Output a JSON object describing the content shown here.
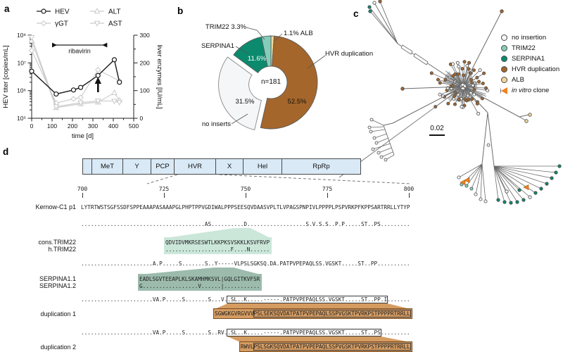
{
  "figure": {
    "panel_labels": {
      "a": "a",
      "b": "b",
      "c": "c",
      "d": "d"
    }
  },
  "colors": {
    "hev_black": "#1a1a1a",
    "enzyme_grey": "#c9c9c9",
    "no_insertion": "#f4f6f7",
    "trim22": "#85cdbb",
    "serpina1": "#0b8a6d",
    "hvr_duplication": "#a5662b",
    "alb": "#f2d79b",
    "in_vitro": "#f08121",
    "genome": "#d9e9f6",
    "trim_box": "#cbe7da",
    "serpina_box": "#9cbbad",
    "dup_box": "#d59c62"
  },
  "chart_data": [
    {
      "type": "line",
      "title": "",
      "xlabel": "time [d]",
      "ylabel_left": "HEV titer [copies/mL]",
      "ylabel_right": "liver enzymes [IU/mL]",
      "x_ticks": [
        0,
        100,
        200,
        300,
        400,
        500
      ],
      "xlim": [
        0,
        500
      ],
      "y_left_scale": "log",
      "y_left_ticks": [
        "10⁵",
        "10⁶",
        "10⁷",
        "10⁸"
      ],
      "y_left_lim": [
        100000,
        100000000
      ],
      "y_right_ticks": [
        0,
        100,
        200,
        300
      ],
      "y_right_lim": [
        0,
        300
      ],
      "annotation": {
        "label": "ribavirin",
        "x_start": 100,
        "x_end": 370,
        "arrow_x": 325
      },
      "series": [
        {
          "name": "HEV",
          "axis": "left",
          "marker": "circle",
          "color": "#1a1a1a",
          "points": [
            [
              0,
              5000000
            ],
            [
              120,
              750000
            ],
            [
              205,
              1050000
            ],
            [
              240,
              1300000
            ],
            [
              325,
              3500000
            ],
            [
              405,
              13000000
            ],
            [
              430,
              2000000
            ]
          ]
        },
        {
          "name": "γGT",
          "axis": "right",
          "marker": "diamond",
          "color": "#c9c9c9",
          "points": [
            [
              0,
              245
            ],
            [
              120,
              55
            ],
            [
              205,
              70
            ],
            [
              240,
              75
            ],
            [
              325,
              175
            ],
            [
              430,
              135
            ]
          ]
        },
        {
          "name": "ALT",
          "axis": "right",
          "marker": "triangle-up",
          "color": "#c9c9c9",
          "points": [
            [
              0,
              280
            ],
            [
              120,
              38
            ],
            [
              240,
              52
            ],
            [
              325,
              58
            ],
            [
              405,
              92
            ],
            [
              430,
              65
            ]
          ]
        },
        {
          "name": "AST",
          "axis": "right",
          "marker": "triangle-down",
          "color": "#c9c9c9",
          "points": [
            [
              0,
              292
            ],
            [
              120,
              42
            ],
            [
              240,
              56
            ],
            [
              325,
              63
            ],
            [
              405,
              62
            ],
            [
              430,
              58
            ]
          ]
        }
      ]
    },
    {
      "type": "pie",
      "title": "",
      "center_label": "n=181",
      "slices": [
        {
          "label": "ALB",
          "pct": 1.1,
          "color": "#f2d79b",
          "exploded": false
        },
        {
          "label": "HVR duplication",
          "pct": 52.5,
          "color": "#a5662b",
          "exploded": false
        },
        {
          "label": "no inserts",
          "pct": 31.5,
          "color": "#f4f6f7",
          "exploded": true
        },
        {
          "label": "SERPINA1",
          "pct": 11.6,
          "color": "#0b8a6d",
          "exploded": false
        },
        {
          "label": "TRIM22",
          "pct": 3.3,
          "color": "#85cdbb",
          "exploded": false
        }
      ]
    }
  ],
  "panel_b": {
    "labels": {
      "trim22": "TRIM22 3.3%",
      "alb": "1.1% ALB",
      "serpina1": "SERPINA1",
      "hvr": "HVR duplication",
      "no_inserts": "no inserts",
      "pct_serpina1": "11.6%",
      "pct_hvr": "52.5%",
      "pct_no_inserts": "31.5%",
      "center": "n=181"
    }
  },
  "panel_c": {
    "legend": [
      {
        "label": "no insertion",
        "marker": "circle",
        "color": "#f4f6f7"
      },
      {
        "label": "TRIM22",
        "marker": "circle",
        "color": "#85cdbb"
      },
      {
        "label": "SERPINA1",
        "marker": "circle",
        "color": "#0b8a6d"
      },
      {
        "label": "HVR duplication",
        "marker": "circle",
        "color": "#a5662b"
      },
      {
        "label": "ALB",
        "marker": "circle",
        "color": "#f2d79b"
      },
      {
        "label_italic": "in vitro",
        "label_rest": " clone",
        "marker": "triangle",
        "color": "#f08121"
      }
    ],
    "scale_label": "0.02"
  },
  "panel_d": {
    "genome_segments": [
      "",
      "MeT",
      "Y",
      "PCP",
      "HVR",
      "X",
      "Hel",
      "RpRp"
    ],
    "ruler": [
      "700",
      "725",
      "750",
      "775",
      "800"
    ],
    "labels": {
      "reference": "Kernow-C1 p1",
      "cons_trim22": "cons.TRIM22",
      "h_trim22": "h.TRIM22",
      "serpina1_1": "SERPINA1.1",
      "serpina1_2": "SERPINA1.2",
      "dup1": "duplication 1",
      "dup2": "duplication 2"
    },
    "sequences": {
      "reference": "LYTRTWSTSGFSSDFSPPEAAAPASAAAPGLPHPTPPVGDIWALPPPSEESQVDAASVPLTLVPAGSPNPIVLPPPPLPSPVRKPFKPPSARTRRLLYTYP",
      "trim22_variant": "......................................AS..........D..................S.V.S.S..P.P.....ST..PS.........",
      "trim22_insert": "QDVIDVMKRSESWTLKKPKSVSKKLKSVFRVP",
      "trim22_insert_variant": "....................F....N......",
      "serpina1_variant": "......................A.P.....S.......S..Y-----VLPSLSGKSQ.DA.PATPVPEPAQLSS.VGSKT.....ST..PP..........",
      "serpina1_insert_1": "EADLSGVTEEAPLKLSKAMHMKSVL|GQLGITKVFSR",
      "serpina1_insert_2": "G.................V......|...........",
      "dup1_prefix": "......................VA.P.....S.......S...V.",
      "dup1_boxed": ".SL..K.....-----.PATPVPEPAQLSS.VGSKT.....ST..PP.I",
      "dup1_suffix": ".......",
      "dup1_insert_pre": "SGWGKGVRGVVV",
      "dup1_insert_dup": "PSLSEKSQVDATPATPVPEPAQLSSPVGSKTPVRKPSTPPPPRTRRLL",
      "dup2_prefix": "......................VA.P.....S.......S..RV.",
      "dup2_boxed": ".SL..K.....-----.PATPVPEPAQLSS.VGSKT.....ST..PS",
      "dup2_suffix": ".........",
      "dup2_insert_pre": "RWVL",
      "dup2_insert_dup": "PSLSGKSQVDATPATPVPEPAQLSSPVGSKTPVRKPSTPPPPRTRRLL"
    }
  }
}
